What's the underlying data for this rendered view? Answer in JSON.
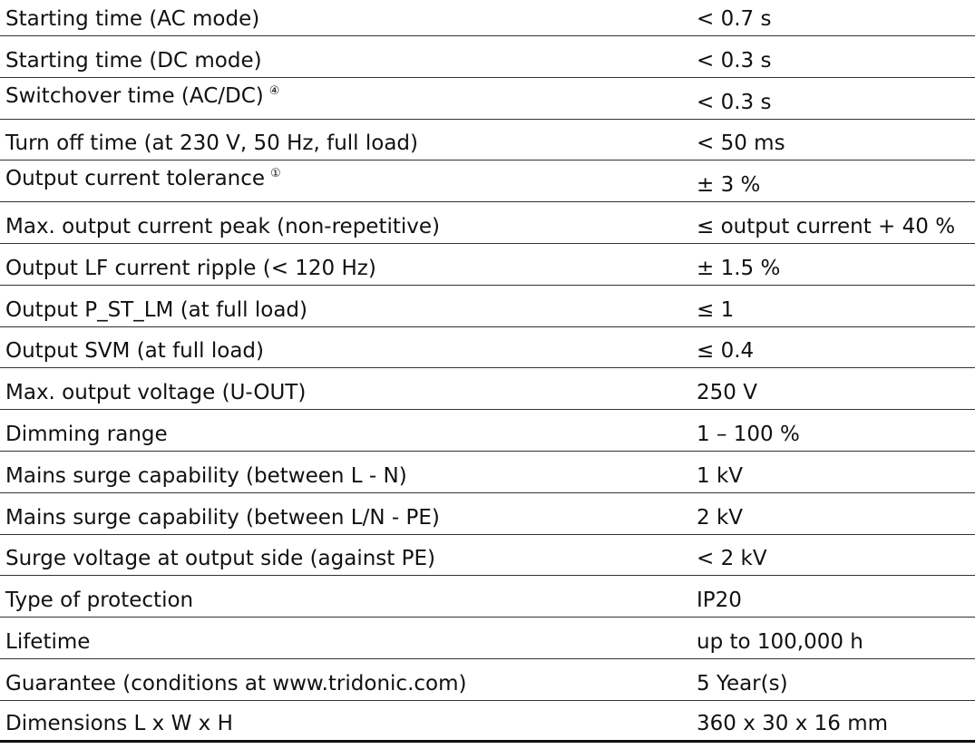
{
  "table": {
    "rows": [
      {
        "label": "Starting time (AC mode)",
        "value": "< 0.7 s"
      },
      {
        "label": "Starting time (DC mode)",
        "value": "< 0.3 s"
      },
      {
        "label": "Switchover time (AC/DC)",
        "note": "④",
        "value": "< 0.3 s"
      },
      {
        "label": "Turn off time (at 230 V, 50 Hz, full load)",
        "value": "< 50 ms"
      },
      {
        "label": "Output current tolerance",
        "note": "①",
        "value": "± 3 %"
      },
      {
        "label": "Max. output current peak (non-repetitive)",
        "value": "≤ output current + 40 %"
      },
      {
        "label": "Output LF current ripple (< 120 Hz)",
        "value": "± 1.5 %"
      },
      {
        "label": "Output P_ST_LM (at full load)",
        "value": "≤ 1"
      },
      {
        "label": "Output SVM (at full load)",
        "value": "≤ 0.4"
      },
      {
        "label": "Max. output voltage (U-OUT)",
        "value": "250 V"
      },
      {
        "label": "Dimming range",
        "value": "1 – 100 %"
      },
      {
        "label": "Mains surge capability (between L - N)",
        "value": "1 kV"
      },
      {
        "label": "Mains surge capability (between L/N - PE)",
        "value": "2 kV"
      },
      {
        "label": "Surge voltage at output side (against PE)",
        "value": "< 2 kV"
      },
      {
        "label": "Type of protection",
        "value": "IP20"
      },
      {
        "label": "Lifetime",
        "value": "up to 100,000 h"
      },
      {
        "label": "Guarantee (conditions at www.tridonic.com)",
        "value": "5 Year(s)"
      },
      {
        "label": "Dimensions L x W x H",
        "value": "360 x 30 x 16 mm"
      }
    ]
  }
}
